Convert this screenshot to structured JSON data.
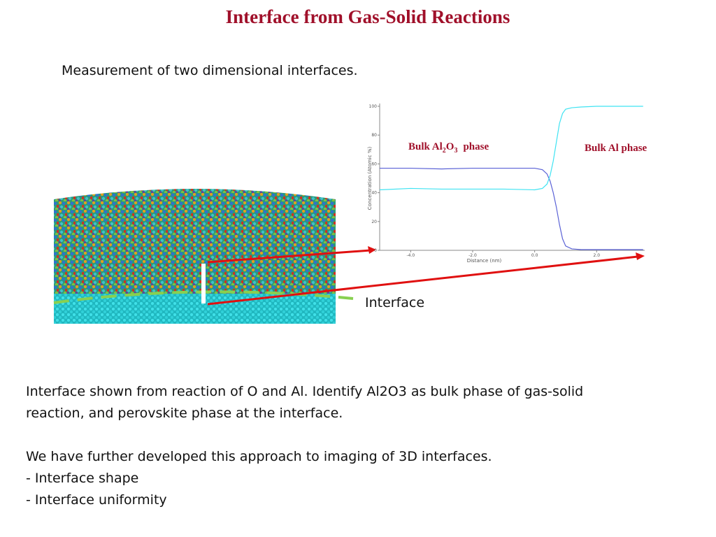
{
  "title": "Interface from Gas-Solid Reactions",
  "subtitle": "Measurement of two dimensional interfaces.",
  "interface_label": "Interface",
  "body": [
    "Interface shown from reaction of O and Al.  Identify Al2O3 as bulk phase of gas-solid",
    "reaction, and perovskite phase at the interface.",
    "We have further developed this approach to imaging of 3D interfaces.",
    "- Interface shape",
    "- Interface uniformity"
  ],
  "chart_data": {
    "type": "line",
    "x_label": "Distance (nm)",
    "y_label": "Concentration (Atomic %)",
    "annotations": {
      "oxide_phase": [
        "Bulk Al",
        "2",
        "O",
        "3",
        "phase"
      ],
      "metal_phase": "Bulk Al phase"
    },
    "x": [
      -5,
      -4,
      -3,
      -2,
      -1,
      0,
      0.25,
      0.4,
      0.5,
      0.6,
      0.7,
      0.8,
      0.9,
      1.0,
      1.2,
      1.5,
      2,
      3,
      3.5
    ],
    "series": [
      {
        "color": "#5a62d6",
        "values": [
          57,
          57,
          56.5,
          57,
          57,
          57,
          56,
          53,
          48,
          40,
          30,
          18,
          8,
          3,
          1,
          0.5,
          0.5,
          0.5,
          0.5
        ]
      },
      {
        "color": "#3fe3f2",
        "values": [
          42,
          43,
          42.5,
          42.5,
          42.5,
          42,
          43,
          46,
          52,
          62,
          75,
          88,
          95,
          98,
          99,
          99.5,
          100,
          100,
          100
        ]
      }
    ],
    "xlim": [
      -5,
      3.55
    ],
    "ylim": [
      0,
      100
    ],
    "xticks": [
      {
        "value": -4,
        "label": "-4.0"
      },
      {
        "value": -2,
        "label": "-2.0"
      },
      {
        "value": 0,
        "label": "0.0"
      },
      {
        "value": 2,
        "label": "2.0"
      }
    ],
    "yticks": [
      0,
      20,
      40,
      60,
      80,
      100
    ]
  }
}
